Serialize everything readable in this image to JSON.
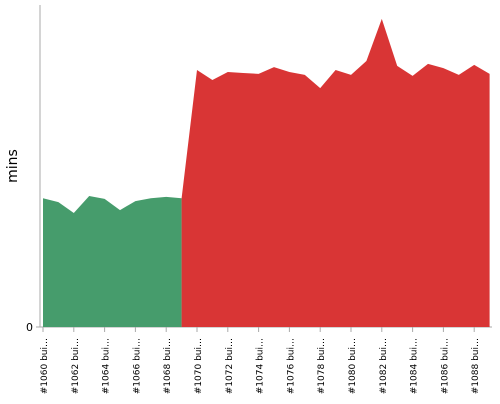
{
  "chart_data": {
    "type": "area",
    "ylabel": "mins",
    "categories": [
      "#1060 bui…",
      null,
      "#1062 bui…",
      null,
      "#1064 bui…",
      null,
      "#1066 bui…",
      null,
      "#1068 bui…",
      null,
      "#1070 bui…",
      null,
      "#1072 bui…",
      null,
      "#1074 bui…",
      null,
      "#1076 bui…",
      null,
      "#1078 bui…",
      null,
      "#1080 bui…",
      null,
      "#1082 bui…",
      null,
      "#1084 bui…",
      null,
      "#1086 bui…",
      null,
      "#1088 bui…",
      null
    ],
    "series": [
      {
        "color": "#469c6c",
        "values": [
          4.0,
          3.88,
          3.54,
          4.07,
          3.98,
          3.63,
          3.91,
          4.0,
          4.04,
          4.0,
          null,
          null,
          null,
          null,
          null,
          null,
          null,
          null,
          null,
          null,
          null,
          null,
          null,
          null,
          null,
          null,
          null,
          null,
          null,
          null
        ]
      },
      {
        "color": "#d93535",
        "values": [
          null,
          null,
          null,
          null,
          null,
          null,
          null,
          null,
          null,
          4.0,
          7.98,
          7.67,
          7.92,
          7.89,
          7.86,
          8.07,
          7.92,
          7.83,
          7.42,
          7.98,
          7.83,
          8.26,
          9.57,
          8.11,
          7.8,
          8.17,
          8.04,
          7.83,
          8.14,
          7.86
        ]
      }
    ],
    "ylim": [
      0,
      10
    ],
    "yticks": [
      0
    ]
  }
}
